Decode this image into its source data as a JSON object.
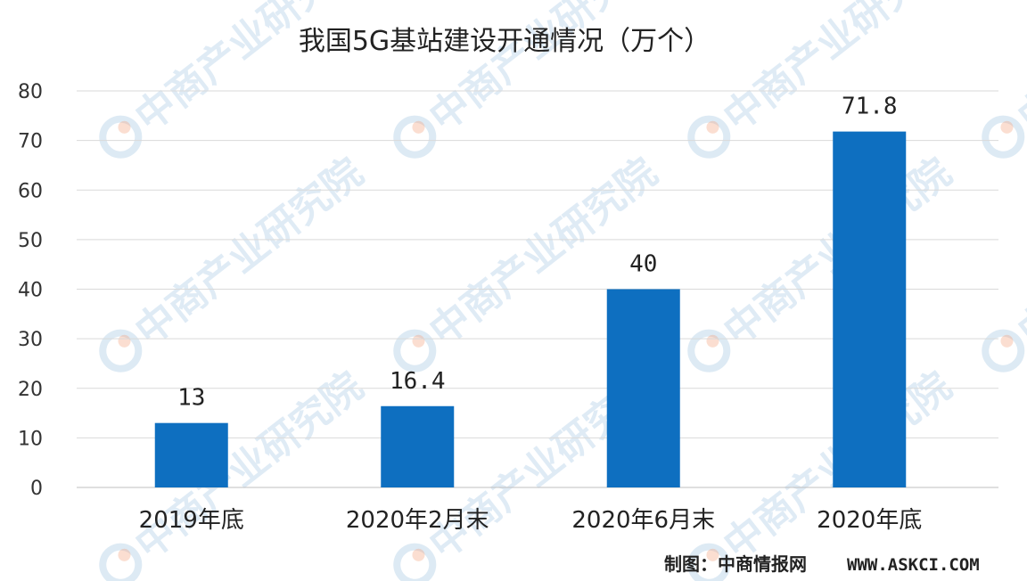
{
  "watermark": "中商产业研究院",
  "source": {
    "label": "制图：中商情报网",
    "url": "WWW.ASKCI.COM"
  },
  "colors": {
    "bar": "#0e6fc0",
    "grid": "#d9d9d9",
    "watermark": "#8fb8dc",
    "watermark_logo_red": "#f4a07a"
  },
  "chart_data": {
    "type": "bar",
    "title": "我国5G基站建设开通情况（万个）",
    "categories": [
      "2019年底",
      "2020年2月末",
      "2020年6月末",
      "2020年底"
    ],
    "values": [
      13,
      16.4,
      40,
      71.8
    ],
    "data_labels": [
      "13",
      "16.4",
      "40",
      "71.8"
    ],
    "ylim": [
      0,
      80
    ],
    "yticks": [
      0,
      10,
      20,
      30,
      40,
      50,
      60,
      70,
      80
    ],
    "grid": true,
    "legend": "none",
    "xlabel": "",
    "ylabel": ""
  }
}
